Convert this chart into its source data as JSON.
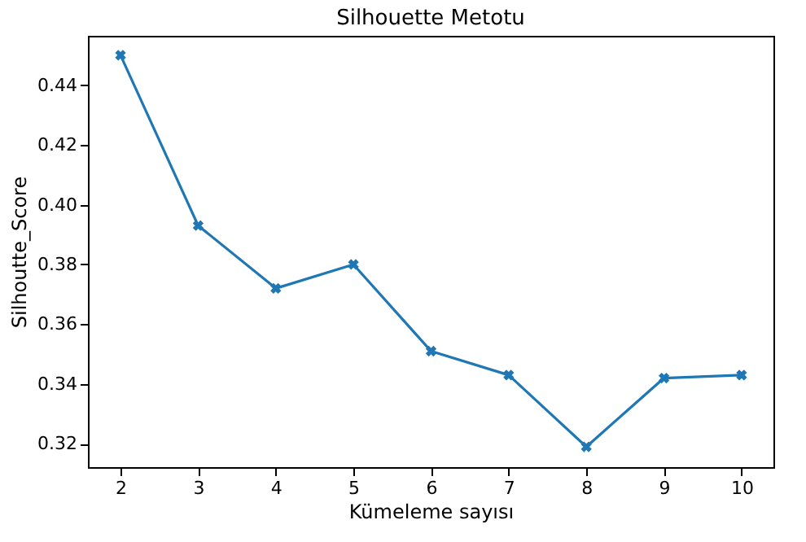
{
  "chart_data": {
    "type": "line",
    "title": "Silhouette Metotu",
    "xlabel": "Kümeleme sayısı",
    "ylabel": "Silhoutte_Score",
    "x": [
      2,
      3,
      4,
      5,
      6,
      7,
      8,
      9,
      10
    ],
    "series": [
      {
        "color": "#1f77b4",
        "values": [
          0.45,
          0.393,
          0.372,
          0.38,
          0.351,
          0.343,
          0.319,
          0.342,
          0.343
        ]
      }
    ],
    "xlim": [
      1.58,
      10.41
    ],
    "xticks": [
      2,
      3,
      4,
      5,
      6,
      7,
      8,
      9,
      10
    ],
    "ylim": [
      0.3122,
      0.4565
    ],
    "yticks": [
      0.32,
      0.34,
      0.36,
      0.38,
      {
        "value": 0.4,
        "label": "0.40"
      },
      0.42,
      0.44
    ],
    "marker": "cross",
    "line_style": "solid",
    "grid": false
  }
}
